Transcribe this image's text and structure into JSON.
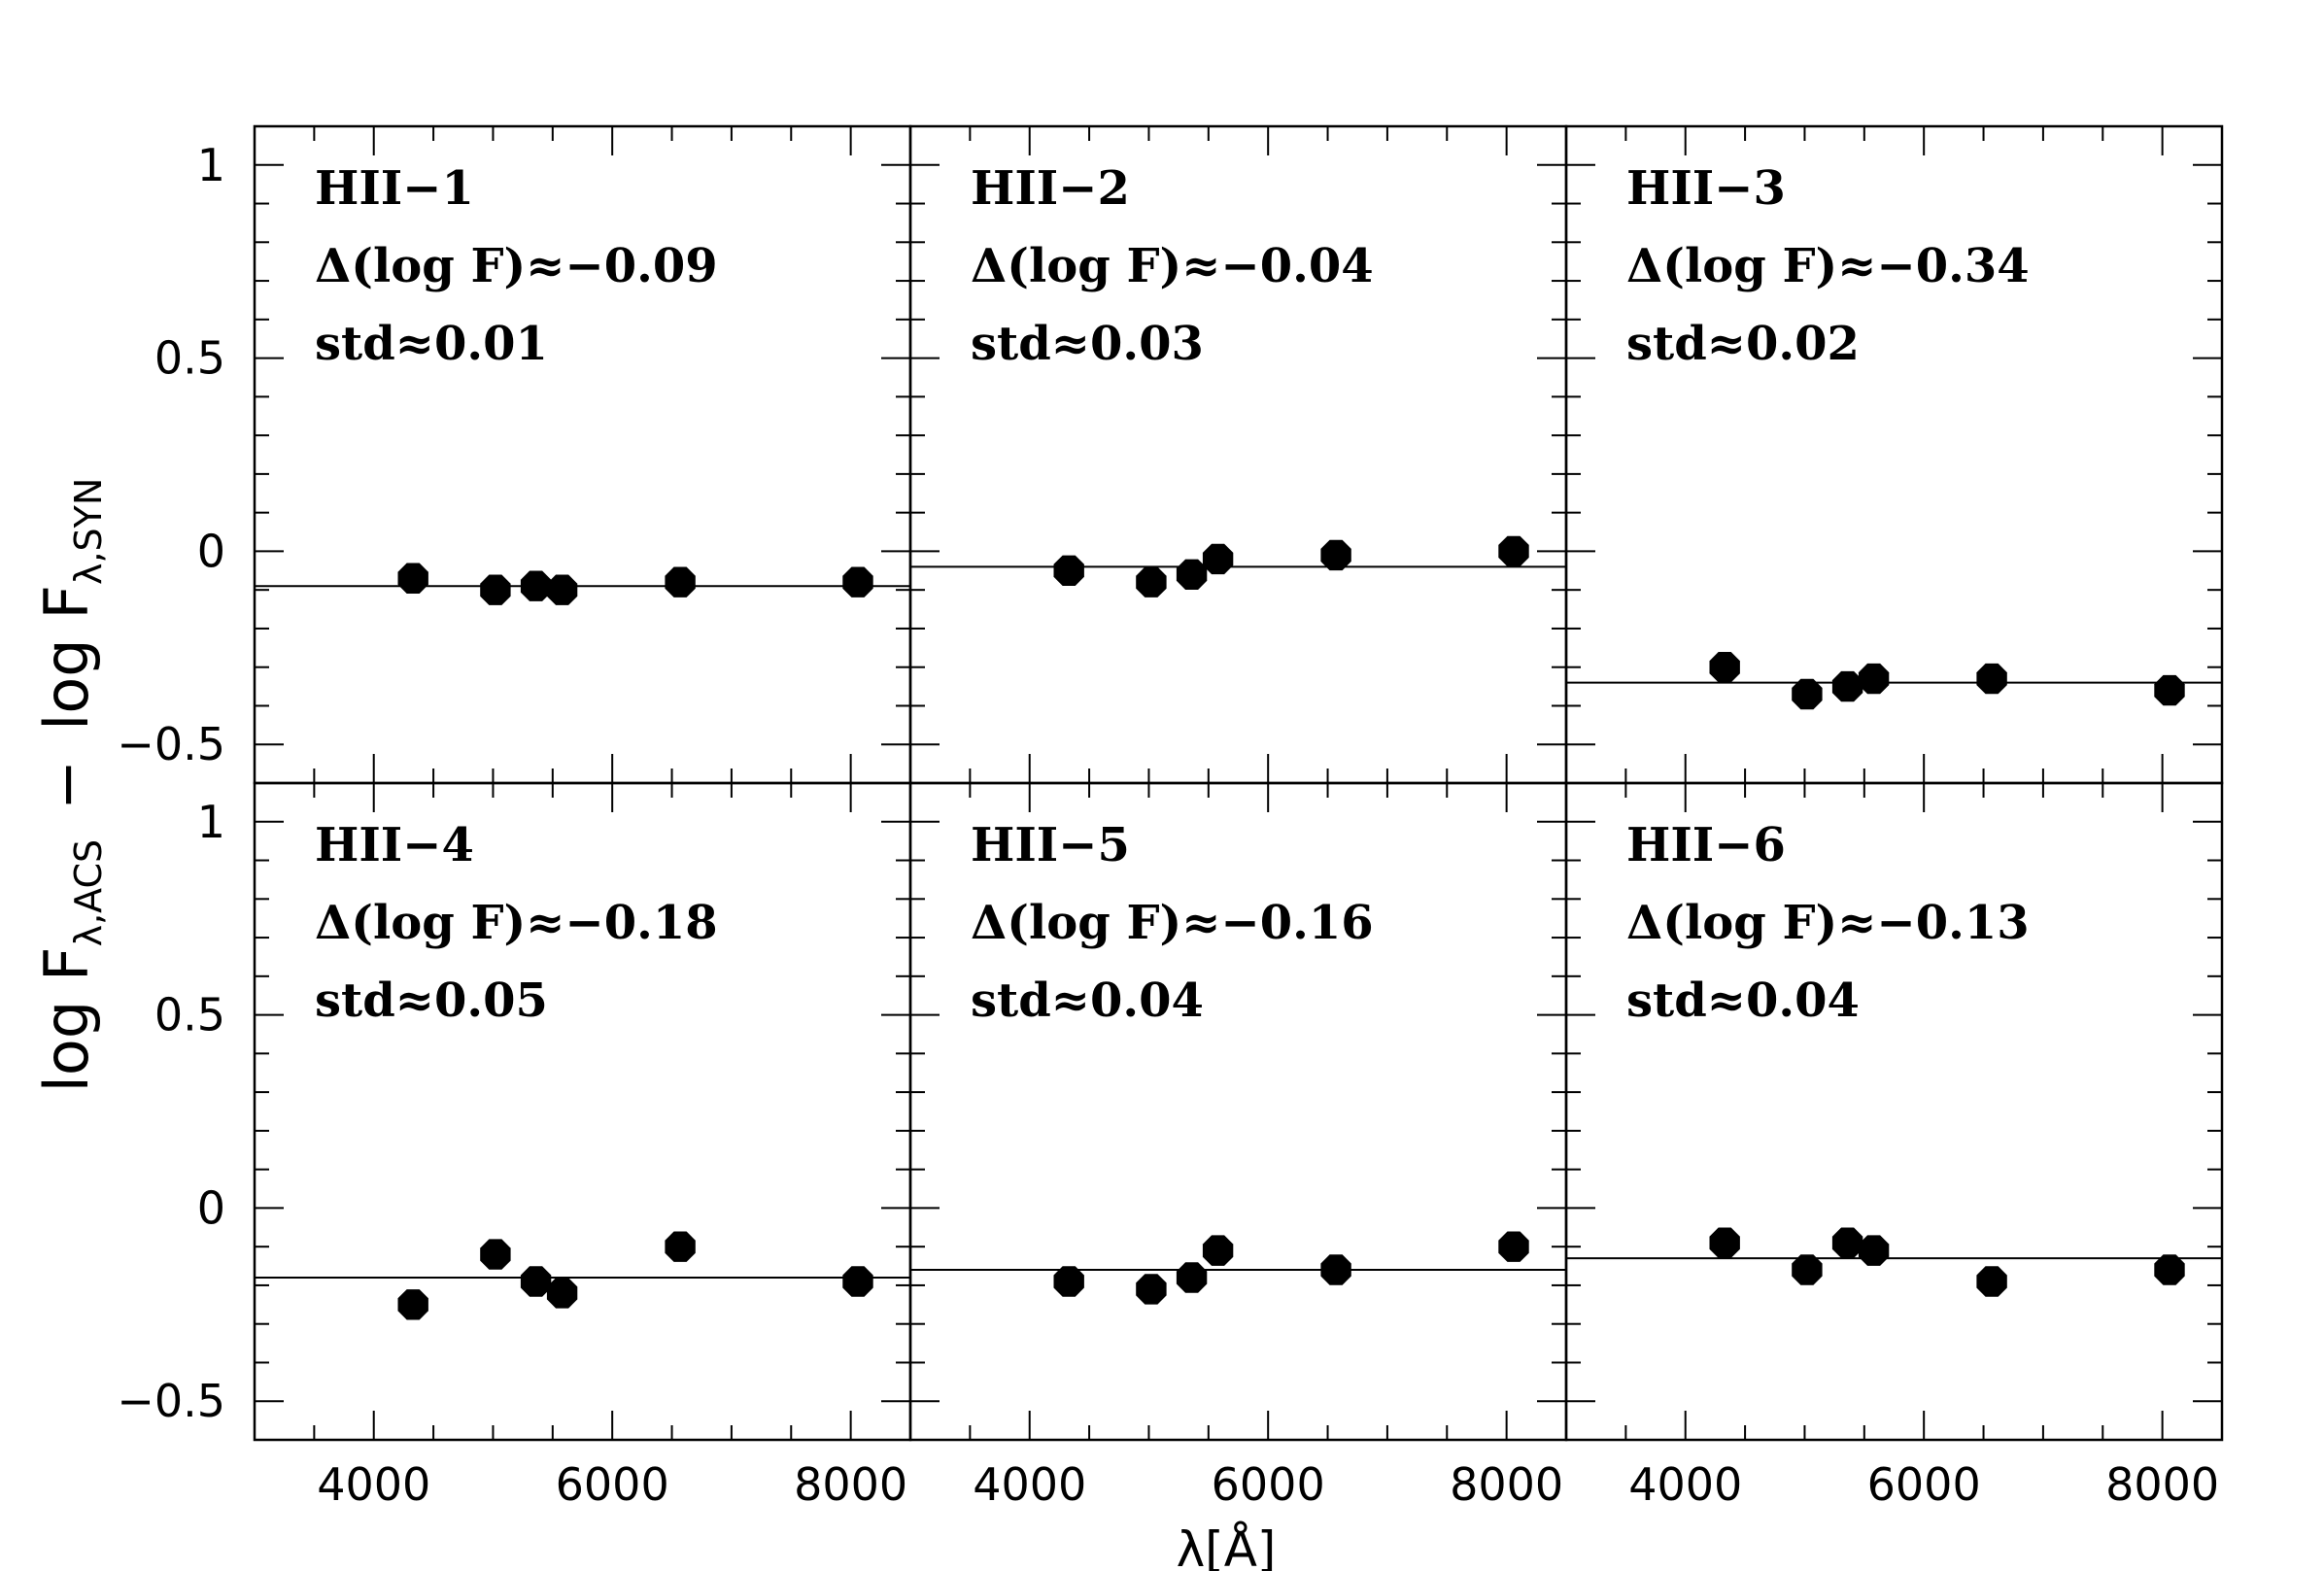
{
  "figure": {
    "ylabel_main": "log  F",
    "ylabel_main_sub": "λ,ACS",
    "ylabel_sep": "−",
    "ylabel_second": "log  F",
    "ylabel_second_sub": "λ,SYN",
    "xlabel": "λ[Å]"
  },
  "chart_data": [
    {
      "type": "scatter",
      "panel": "HII-1",
      "title": "HII−1",
      "annotations": [
        "Δ(log F)≈−0.09",
        "std≈0.01"
      ],
      "x": [
        4330,
        5020,
        5360,
        5580,
        6570,
        8060
      ],
      "y": [
        -0.07,
        -0.1,
        -0.09,
        -0.1,
        -0.08,
        -0.08
      ],
      "hline": -0.09,
      "xlim": [
        3000,
        8500
      ],
      "ylim": [
        -0.6,
        1.1
      ],
      "xticks": [
        "4000",
        "6000",
        "8000"
      ],
      "yticks": [
        "−0.5",
        "0",
        "0.5",
        "1"
      ]
    },
    {
      "type": "scatter",
      "panel": "HII-2",
      "title": "HII−2",
      "annotations": [
        "Δ(log F)≈−0.04",
        "std≈0.03"
      ],
      "x": [
        4330,
        5020,
        5360,
        5580,
        6570,
        8060
      ],
      "y": [
        -0.05,
        -0.08,
        -0.06,
        -0.02,
        -0.01,
        0.0
      ],
      "hline": -0.04,
      "xlim": [
        3000,
        8500
      ],
      "ylim": [
        -0.6,
        1.1
      ],
      "xticks": [
        "4000",
        "6000",
        "8000"
      ],
      "yticks": []
    },
    {
      "type": "scatter",
      "panel": "HII-3",
      "title": "HII−3",
      "annotations": [
        "Δ(log F)≈−0.34",
        "std≈0.02"
      ],
      "x": [
        4330,
        5020,
        5360,
        5580,
        6570,
        8060
      ],
      "y": [
        -0.3,
        -0.37,
        -0.35,
        -0.33,
        -0.33,
        -0.36
      ],
      "hline": -0.34,
      "xlim": [
        3000,
        8500
      ],
      "ylim": [
        -0.6,
        1.1
      ],
      "xticks": [
        "4000",
        "6000",
        "8000"
      ],
      "yticks": []
    },
    {
      "type": "scatter",
      "panel": "HII-4",
      "title": "HII−4",
      "annotations": [
        "Δ(log F)≈−0.18",
        "std≈0.05"
      ],
      "x": [
        4330,
        5020,
        5360,
        5580,
        6570,
        8060
      ],
      "y": [
        -0.25,
        -0.12,
        -0.19,
        -0.22,
        -0.1,
        -0.19
      ],
      "hline": -0.18,
      "xlim": [
        3000,
        8500
      ],
      "ylim": [
        -0.6,
        1.1
      ],
      "xticks": [
        "4000",
        "6000",
        "8000"
      ],
      "yticks": [
        "−0.5",
        "0",
        "0.5",
        "1"
      ]
    },
    {
      "type": "scatter",
      "panel": "HII-5",
      "title": "HII−5",
      "annotations": [
        "Δ(log F)≈−0.16",
        "std≈0.04"
      ],
      "x": [
        4330,
        5020,
        5360,
        5580,
        6570,
        8060
      ],
      "y": [
        -0.19,
        -0.21,
        -0.18,
        -0.11,
        -0.16,
        -0.1
      ],
      "hline": -0.16,
      "xlim": [
        3000,
        8500
      ],
      "ylim": [
        -0.6,
        1.1
      ],
      "xticks": [
        "4000",
        "6000",
        "8000"
      ],
      "yticks": []
    },
    {
      "type": "scatter",
      "panel": "HII-6",
      "title": "HII−6",
      "annotations": [
        "Δ(log F)≈−0.13",
        "std≈0.04"
      ],
      "x": [
        4330,
        5020,
        5360,
        5580,
        6570,
        8060
      ],
      "y": [
        -0.09,
        -0.16,
        -0.09,
        -0.11,
        -0.19,
        -0.16
      ],
      "hline": -0.13,
      "xlim": [
        3000,
        8500
      ],
      "ylim": [
        -0.6,
        1.1
      ],
      "xticks": [
        "4000",
        "6000",
        "8000"
      ],
      "yticks": []
    }
  ]
}
